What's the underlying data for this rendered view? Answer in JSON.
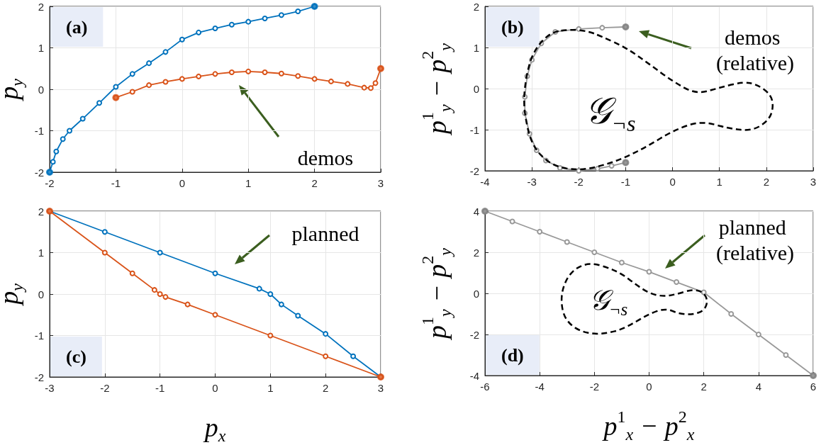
{
  "chart_data": [
    {
      "type": "line",
      "ylabel": "p$_{y}$",
      "xlim": [
        -2,
        3
      ],
      "ylim": [
        -2,
        2
      ],
      "xticks": [
        -2,
        -1,
        0,
        1,
        2,
        3
      ],
      "yticks": [
        -2,
        -1,
        0,
        1,
        2
      ],
      "grid": true,
      "marker": "circle",
      "line_style": "solid",
      "annotations": [
        "(a)",
        "demos"
      ],
      "series": [
        {
          "color": "#0072bd",
          "x": [
            -2,
            -1.95,
            -1.9,
            -1.8,
            -1.7,
            -1.5,
            -1.25,
            -1,
            -0.75,
            -0.5,
            -0.25,
            0,
            0.25,
            0.5,
            0.75,
            1,
            1.25,
            1.5,
            1.75,
            2
          ],
          "values": [
            -2,
            -1.75,
            -1.5,
            -1.2,
            -1.0,
            -0.71,
            -0.33,
            0.06,
            0.37,
            0.63,
            0.9,
            1.2,
            1.37,
            1.47,
            1.56,
            1.63,
            1.71,
            1.79,
            1.88,
            2
          ]
        },
        {
          "color": "#d95319",
          "x": [
            -1,
            -0.75,
            -0.5,
            -0.25,
            0,
            0.25,
            0.5,
            0.75,
            1,
            1.25,
            1.5,
            1.75,
            2,
            2.25,
            2.5,
            2.75,
            2.85,
            2.92,
            3
          ],
          "values": [
            -0.2,
            -0.06,
            0.1,
            0.18,
            0.25,
            0.31,
            0.37,
            0.41,
            0.43,
            0.41,
            0.38,
            0.32,
            0.25,
            0.19,
            0.13,
            0.04,
            0.03,
            0.15,
            0.5
          ]
        },
        {
          "type": "scatter",
          "color": "#0072bd",
          "x": [
            -2,
            2
          ],
          "values": [
            -2,
            2
          ]
        },
        {
          "type": "scatter",
          "color": "#d95319",
          "x": [
            -1,
            3
          ],
          "values": [
            -0.2,
            0.5
          ]
        }
      ]
    },
    {
      "type": "line",
      "ylabel": "p$^{1}$$_{y}$ − p$^{2}$$_{y}$",
      "xlim": [
        -4,
        3
      ],
      "ylim": [
        -2,
        2
      ],
      "xticks": [
        -4,
        -3,
        -2,
        -1,
        0,
        1,
        2,
        3
      ],
      "yticks": [
        -2,
        -1,
        0,
        1,
        2
      ],
      "grid": true,
      "marker": "circle",
      "line_style": "solid",
      "annotations": [
        "(b)",
        "𝒢$_{¬s}$",
        "demos (relative)"
      ],
      "series": [
        {
          "color": "#999999",
          "x": [
            -1,
            -1.5,
            -2,
            -2.5,
            -2.8,
            -3.0,
            -3.1,
            -3.15,
            -3.15,
            -3.05,
            -2.9,
            -2.7,
            -2.4,
            -2,
            -1.6,
            -1.3,
            -1
          ],
          "values": [
            1.5,
            1.48,
            1.45,
            1.38,
            1.1,
            0.7,
            0.3,
            -0.2,
            -0.6,
            -1.1,
            -1.5,
            -1.75,
            -1.93,
            -2.0,
            -1.95,
            -1.88,
            -1.8
          ]
        },
        {
          "type": "scatter",
          "color": "#808080",
          "x": [
            -1,
            -1
          ],
          "values": [
            1.5,
            -1.8
          ]
        }
      ]
    },
    {
      "type": "line",
      "xlabel": "p$_{x}$",
      "ylabel": "p$_{y}$",
      "xlim": [
        -3,
        3
      ],
      "ylim": [
        -2,
        2
      ],
      "xticks": [
        -3,
        -2,
        -1,
        0,
        1,
        2,
        3
      ],
      "yticks": [
        -2,
        -1,
        0,
        1,
        2
      ],
      "grid": true,
      "marker": "circle",
      "line_style": "solid",
      "annotations": [
        "(c)",
        "planned"
      ],
      "series": [
        {
          "color": "#0072bd",
          "x": [
            -3,
            -2,
            -1,
            0,
            0.8,
            1,
            1.2,
            1.5,
            2,
            2.5,
            3
          ],
          "values": [
            2,
            1.5,
            1.0,
            0.5,
            0.13,
            0.0,
            -0.25,
            -0.52,
            -0.96,
            -1.5,
            -2
          ]
        },
        {
          "color": "#d95319",
          "x": [
            -3,
            -2,
            -1.5,
            -1.1,
            -1,
            -0.9,
            -0.5,
            0,
            1,
            2,
            3
          ],
          "values": [
            2,
            1.0,
            0.5,
            0.1,
            0.0,
            -0.07,
            -0.25,
            -0.5,
            -1.0,
            -1.5,
            -2
          ]
        },
        {
          "type": "scatter",
          "color": "#d95319",
          "x": [
            -3,
            3
          ],
          "values": [
            2,
            -2
          ]
        }
      ]
    },
    {
      "type": "line",
      "xlabel": "p$^{1}$$_{x}$ − p$^{2}$$_{x}$",
      "ylabel": "p$^{1}$$_{y}$ − p$^{2}$$_{y}$",
      "xlim": [
        -6,
        6
      ],
      "ylim": [
        -4,
        4
      ],
      "xticks": [
        -6,
        -4,
        -2,
        0,
        2,
        4,
        6
      ],
      "yticks": [
        -4,
        -2,
        0,
        2,
        4
      ],
      "grid": true,
      "marker": "circle",
      "line_style": "solid",
      "annotations": [
        "(d)",
        "𝒢$_{¬s}$",
        "planned (relative)"
      ],
      "series": [
        {
          "color": "#999999",
          "x": [
            -6,
            -5,
            -4,
            -3,
            -2,
            -1,
            0,
            1,
            2,
            3,
            4,
            5,
            6
          ],
          "values": [
            4,
            3.5,
            3,
            2.5,
            2,
            1.5,
            1.05,
            0.55,
            0.05,
            -1,
            -2,
            -3,
            -4
          ]
        },
        {
          "type": "scatter",
          "color": "#808080",
          "x": [
            -6,
            6
          ],
          "values": [
            4,
            -4
          ]
        }
      ]
    }
  ]
}
